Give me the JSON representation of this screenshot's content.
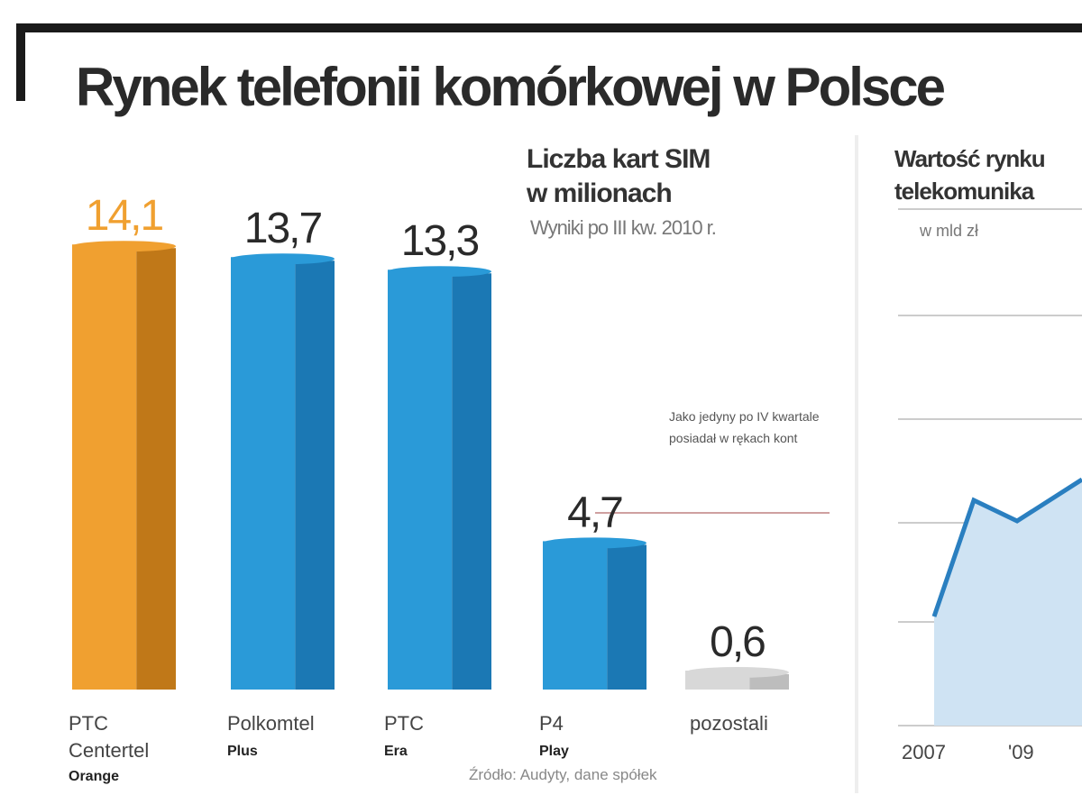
{
  "title": "Rynek telefonii komórkowej w Polsce",
  "subtitle_line1": "Liczba kart SIM",
  "subtitle_line2": "w milionach",
  "subnote": "Wyniki po III kw. 2010 r.",
  "annotation": "Jako jedyny po IV kwartale posiadał w rękach kont",
  "source": "Źródło: Audyty, dane spółek",
  "right_title_line1": "Wartość rynku",
  "right_title_line2": "telekomunika",
  "right_unit": "w mld zł",
  "colors": {
    "orange": "#f0a030",
    "orange_dark": "#c07818",
    "blue": "#2a9ad8",
    "blue_dark": "#1b78b4",
    "gray": "#d8d8d8",
    "area": "#cfe3f3",
    "line": "#2a7fc0"
  },
  "chart_data": [
    {
      "type": "bar",
      "title": "Liczba kart SIM w milionach",
      "categories": [
        "PTC Centertel",
        "Polkomtel",
        "PTC",
        "P4",
        "pozostali"
      ],
      "brands": [
        "Orange",
        "Plus",
        "Era",
        "Play",
        ""
      ],
      "values": [
        14.1,
        13.7,
        13.3,
        4.7,
        0.6
      ],
      "value_labels": [
        "14,1",
        "13,7",
        "13,3",
        "4,7",
        "0,6"
      ],
      "ylim": [
        0,
        15
      ]
    },
    {
      "type": "area",
      "title": "Wartość rynku telekomunika",
      "ylabel": "w mld zł",
      "x_ticks": [
        "2007",
        "'09"
      ]
    }
  ]
}
